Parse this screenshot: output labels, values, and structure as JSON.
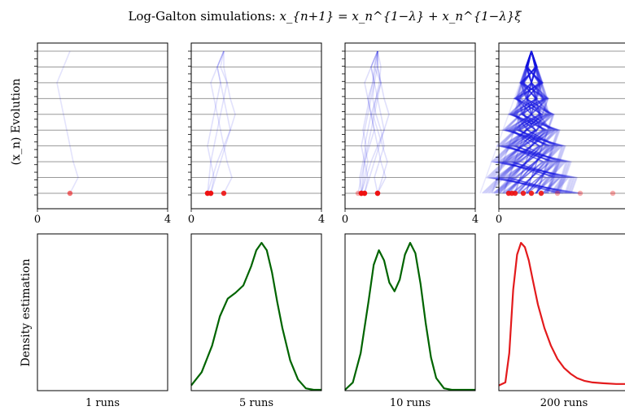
{
  "title": {
    "prefix": "Log-Galton simulations: ",
    "equation": "x_{n+1} = x_n^{1−λ} + x_n^{1−λ}ξ"
  },
  "row_labels": {
    "top": "(x_n) Evolution",
    "bottom": "Density estimation"
  },
  "colors": {
    "path": "#1a1ae6",
    "point": "#ee1111",
    "density_partial": "#006400",
    "density_final": "#e31a1c",
    "gridline": "#999999"
  },
  "chart_data": [
    {
      "type": "line",
      "panel": "evolution-1",
      "xlim": [
        0,
        4
      ],
      "x_ticks": [
        "0",
        "4"
      ],
      "path_opacity": 0.12,
      "paths": [
        [
          1.0,
          1.25,
          1.1,
          1.0,
          0.9,
          0.8,
          0.7,
          0.6,
          0.8,
          1.0
        ]
      ],
      "endpoints": [
        1.0
      ]
    },
    {
      "type": "line",
      "panel": "evolution-5",
      "xlim": [
        0,
        4
      ],
      "x_ticks": [
        "0",
        "4"
      ],
      "path_opacity": 0.13,
      "paths": [
        [
          1.0,
          1.25,
          1.1,
          1.0,
          0.9,
          0.8,
          0.7,
          0.6,
          0.8,
          1.0
        ],
        [
          0.5,
          0.65,
          0.8,
          1.0,
          1.2,
          1.1,
          1.0,
          0.9,
          0.8,
          1.0
        ],
        [
          0.6,
          0.7,
          0.6,
          0.5,
          0.6,
          0.7,
          0.8,
          0.9,
          0.8,
          1.0
        ],
        [
          0.6,
          0.75,
          0.9,
          1.05,
          1.2,
          1.35,
          1.2,
          1.1,
          1.0,
          1.0
        ],
        [
          0.5,
          0.55,
          0.6,
          0.7,
          0.8,
          0.9,
          1.0,
          1.1,
          0.9,
          1.0
        ]
      ],
      "endpoints": [
        1.0,
        0.5,
        0.6,
        0.6,
        0.5
      ]
    },
    {
      "type": "line",
      "panel": "evolution-10",
      "xlim": [
        0,
        4
      ],
      "x_ticks": [
        "0",
        "4"
      ],
      "path_opacity": 0.14,
      "paths": [
        [
          1.0,
          1.25,
          1.1,
          1.0,
          0.9,
          0.8,
          0.7,
          0.6,
          0.8,
          1.0
        ],
        [
          0.5,
          0.65,
          0.8,
          1.0,
          1.2,
          1.1,
          1.0,
          0.9,
          0.8,
          1.0
        ],
        [
          0.6,
          0.7,
          0.6,
          0.5,
          0.6,
          0.7,
          0.8,
          0.9,
          0.8,
          1.0
        ],
        [
          0.6,
          0.75,
          0.9,
          1.05,
          1.2,
          1.35,
          1.2,
          1.1,
          1.0,
          1.0
        ],
        [
          0.5,
          0.55,
          0.6,
          0.7,
          0.8,
          0.9,
          1.0,
          1.1,
          0.9,
          1.0
        ],
        [
          1.0,
          0.9,
          1.05,
          1.2,
          1.1,
          0.95,
          0.85,
          0.9,
          1.0,
          1.0
        ],
        [
          0.5,
          0.6,
          0.7,
          0.6,
          0.7,
          0.8,
          0.95,
          1.1,
          1.0,
          1.0
        ],
        [
          1.0,
          1.15,
          1.3,
          1.15,
          1.0,
          0.85,
          0.95,
          1.05,
          1.1,
          1.0
        ],
        [
          0.4,
          0.5,
          0.6,
          0.75,
          0.9,
          0.8,
          0.7,
          0.85,
          0.9,
          1.0
        ],
        [
          0.5,
          0.45,
          0.55,
          0.65,
          0.55,
          0.65,
          0.75,
          0.85,
          0.95,
          1.0
        ]
      ],
      "endpoints": [
        1.0,
        0.5,
        0.6,
        0.6,
        0.5,
        1.0,
        0.5,
        1.0,
        0.4,
        0.5
      ]
    },
    {
      "type": "line",
      "panel": "evolution-200",
      "xlim": [
        0,
        4
      ],
      "x_ticks": [
        "0",
        "4"
      ],
      "path_opacity": 0.1,
      "lattice": {
        "levels": 10,
        "start": 1.0,
        "step": 0.35,
        "repeats": 20
      },
      "endpoints": [
        0.3,
        0.4,
        0.5,
        0.75,
        1.0,
        1.3,
        1.8,
        2.5,
        3.5
      ]
    },
    {
      "type": "area",
      "panel": "density-1",
      "xlabel": "1 runs",
      "x": [],
      "y": []
    },
    {
      "type": "line",
      "panel": "density-5",
      "xlabel": "5 runs",
      "x": [
        0.0,
        0.08,
        0.16,
        0.22,
        0.28,
        0.34,
        0.4,
        0.46,
        0.5,
        0.54,
        0.58,
        0.62,
        0.66,
        0.7,
        0.76,
        0.82,
        0.88,
        0.94,
        1.0
      ],
      "y": [
        0.03,
        0.12,
        0.3,
        0.5,
        0.62,
        0.66,
        0.71,
        0.84,
        0.95,
        1.0,
        0.95,
        0.8,
        0.6,
        0.42,
        0.2,
        0.07,
        0.01,
        0.0,
        0.0
      ]
    },
    {
      "type": "line",
      "panel": "density-10",
      "xlabel": "10 runs",
      "x": [
        0.0,
        0.06,
        0.12,
        0.18,
        0.22,
        0.26,
        0.3,
        0.34,
        0.38,
        0.42,
        0.46,
        0.5,
        0.54,
        0.58,
        0.62,
        0.66,
        0.7,
        0.76,
        0.82,
        0.88,
        0.94,
        1.0
      ],
      "y": [
        0.0,
        0.05,
        0.25,
        0.6,
        0.85,
        0.95,
        0.88,
        0.73,
        0.67,
        0.75,
        0.92,
        1.0,
        0.93,
        0.72,
        0.45,
        0.22,
        0.08,
        0.01,
        0.0,
        0.0,
        0.0,
        0.0
      ]
    },
    {
      "type": "line",
      "panel": "density-200",
      "xlabel": "200 runs",
      "x": [
        0.0,
        0.05,
        0.08,
        0.11,
        0.14,
        0.17,
        0.2,
        0.23,
        0.26,
        0.3,
        0.35,
        0.4,
        0.45,
        0.5,
        0.55,
        0.6,
        0.66,
        0.72,
        0.8,
        0.9,
        1.0
      ],
      "y": [
        0.03,
        0.05,
        0.25,
        0.68,
        0.92,
        1.0,
        0.97,
        0.88,
        0.75,
        0.58,
        0.42,
        0.3,
        0.21,
        0.15,
        0.11,
        0.08,
        0.06,
        0.05,
        0.045,
        0.04,
        0.04
      ]
    }
  ]
}
